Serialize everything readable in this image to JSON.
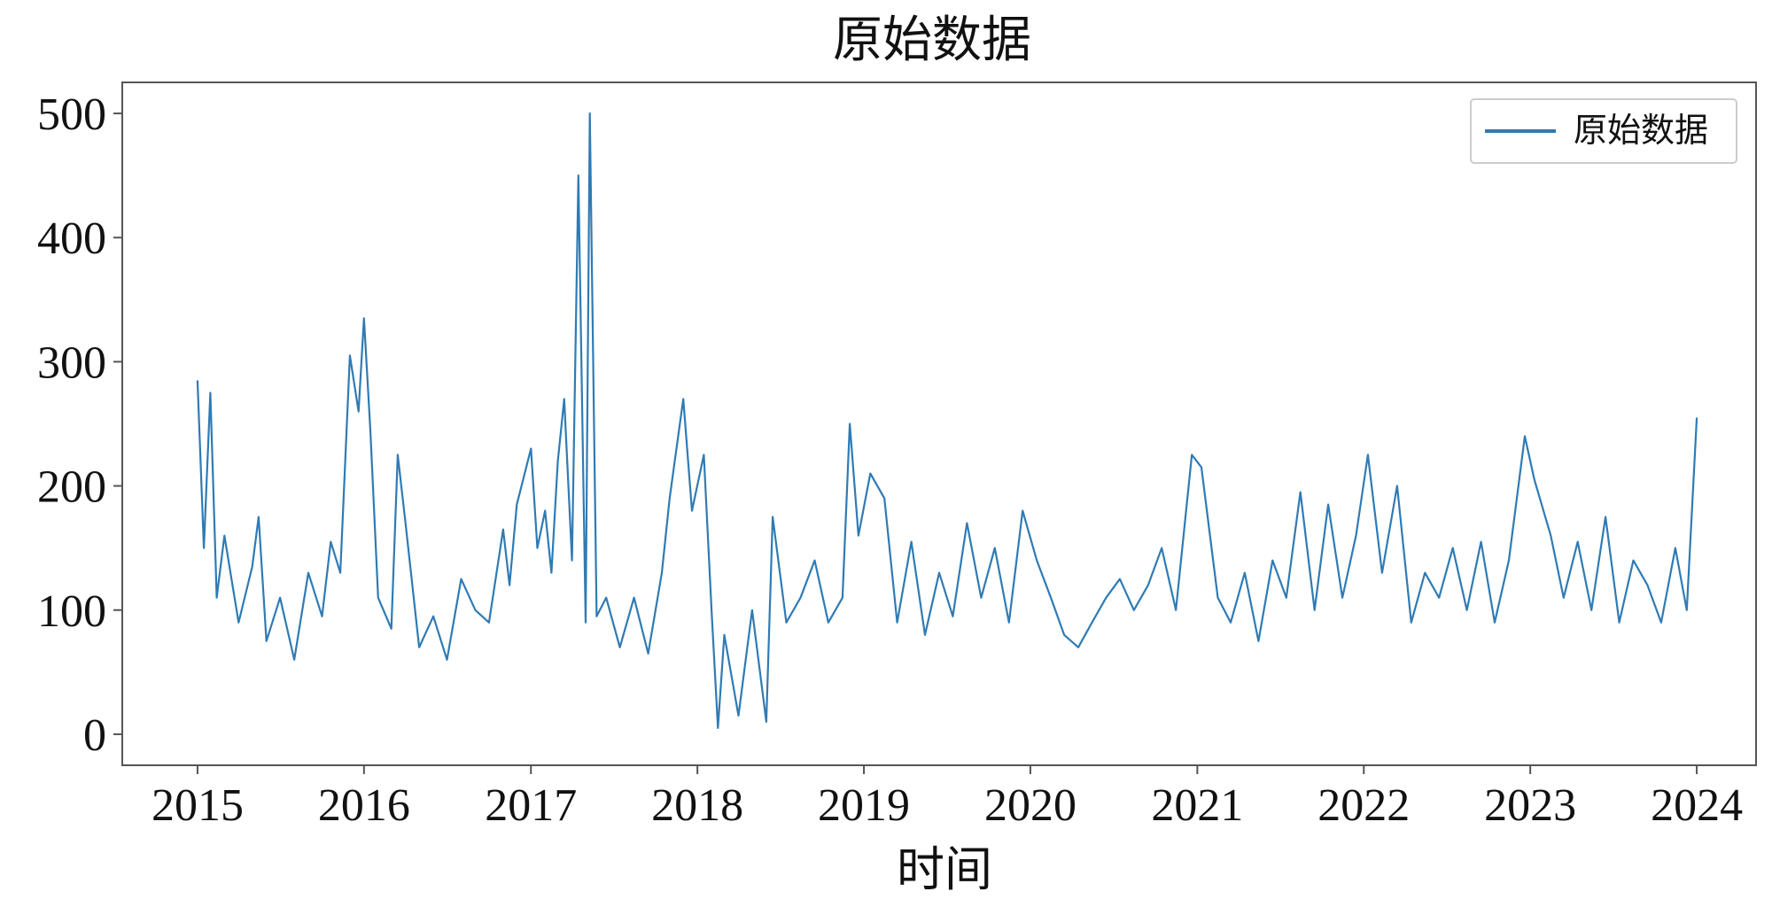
{
  "chart_data": {
    "type": "line",
    "title": "原始数据",
    "xlabel": "时间",
    "ylabel": "",
    "x_range": [
      "2015-01-01",
      "2024-01-01"
    ],
    "xlim": [
      "2014-07-20",
      "2024-05-10"
    ],
    "ylim": [
      -25,
      525
    ],
    "x_ticks": [
      "2015",
      "2016",
      "2017",
      "2018",
      "2019",
      "2020",
      "2021",
      "2022",
      "2023",
      "2024"
    ],
    "y_ticks": [
      0,
      100,
      200,
      300,
      400,
      500
    ],
    "grid": false,
    "legend": {
      "position": "top-right"
    },
    "colors": {
      "series": "#2f7bb4",
      "axes": "#555555",
      "text": "#111111"
    },
    "series": [
      {
        "name": "原始数据",
        "points": [
          [
            "2015-01-01",
            285
          ],
          [
            "2015-01-15",
            150
          ],
          [
            "2015-01-29",
            275
          ],
          [
            "2015-02-12",
            110
          ],
          [
            "2015-03-01",
            160
          ],
          [
            "2015-04-01",
            90
          ],
          [
            "2015-05-01",
            135
          ],
          [
            "2015-05-15",
            175
          ],
          [
            "2015-06-01",
            75
          ],
          [
            "2015-07-01",
            110
          ],
          [
            "2015-08-01",
            60
          ],
          [
            "2015-09-01",
            130
          ],
          [
            "2015-10-01",
            95
          ],
          [
            "2015-10-20",
            155
          ],
          [
            "2015-11-10",
            130
          ],
          [
            "2015-12-01",
            305
          ],
          [
            "2015-12-20",
            260
          ],
          [
            "2016-01-01",
            335
          ],
          [
            "2016-01-15",
            245
          ],
          [
            "2016-02-01",
            110
          ],
          [
            "2016-03-01",
            85
          ],
          [
            "2016-03-15",
            225
          ],
          [
            "2016-04-01",
            170
          ],
          [
            "2016-05-01",
            70
          ],
          [
            "2016-06-01",
            95
          ],
          [
            "2016-07-01",
            60
          ],
          [
            "2016-08-01",
            125
          ],
          [
            "2016-09-01",
            100
          ],
          [
            "2016-10-01",
            90
          ],
          [
            "2016-11-01",
            165
          ],
          [
            "2016-11-15",
            120
          ],
          [
            "2016-12-01",
            185
          ],
          [
            "2017-01-01",
            230
          ],
          [
            "2017-01-15",
            150
          ],
          [
            "2017-02-01",
            180
          ],
          [
            "2017-02-15",
            130
          ],
          [
            "2017-03-01",
            220
          ],
          [
            "2017-03-15",
            270
          ],
          [
            "2017-04-01",
            140
          ],
          [
            "2017-04-15",
            450
          ],
          [
            "2017-05-01",
            90
          ],
          [
            "2017-05-10",
            500
          ],
          [
            "2017-05-25",
            95
          ],
          [
            "2017-06-15",
            110
          ],
          [
            "2017-07-15",
            70
          ],
          [
            "2017-08-15",
            110
          ],
          [
            "2017-09-15",
            65
          ],
          [
            "2017-10-15",
            130
          ],
          [
            "2017-11-01",
            190
          ],
          [
            "2017-12-01",
            270
          ],
          [
            "2017-12-20",
            180
          ],
          [
            "2018-01-15",
            225
          ],
          [
            "2018-02-01",
            100
          ],
          [
            "2018-02-15",
            5
          ],
          [
            "2018-03-01",
            80
          ],
          [
            "2018-04-01",
            15
          ],
          [
            "2018-05-01",
            100
          ],
          [
            "2018-06-01",
            10
          ],
          [
            "2018-06-15",
            175
          ],
          [
            "2018-07-15",
            90
          ],
          [
            "2018-08-15",
            110
          ],
          [
            "2018-09-15",
            140
          ],
          [
            "2018-10-15",
            90
          ],
          [
            "2018-11-15",
            110
          ],
          [
            "2018-12-01",
            250
          ],
          [
            "2018-12-20",
            160
          ],
          [
            "2019-01-15",
            210
          ],
          [
            "2019-02-15",
            190
          ],
          [
            "2019-03-15",
            90
          ],
          [
            "2019-04-15",
            155
          ],
          [
            "2019-05-15",
            80
          ],
          [
            "2019-06-15",
            130
          ],
          [
            "2019-07-15",
            95
          ],
          [
            "2019-08-15",
            170
          ],
          [
            "2019-09-15",
            110
          ],
          [
            "2019-10-15",
            150
          ],
          [
            "2019-11-15",
            90
          ],
          [
            "2019-12-15",
            180
          ],
          [
            "2020-01-15",
            140
          ],
          [
            "2020-02-15",
            110
          ],
          [
            "2020-03-15",
            80
          ],
          [
            "2020-04-15",
            70
          ],
          [
            "2020-05-15",
            90
          ],
          [
            "2020-06-15",
            110
          ],
          [
            "2020-07-15",
            125
          ],
          [
            "2020-08-15",
            100
          ],
          [
            "2020-09-15",
            120
          ],
          [
            "2020-10-15",
            150
          ],
          [
            "2020-11-15",
            100
          ],
          [
            "2020-12-20",
            225
          ],
          [
            "2021-01-10",
            215
          ],
          [
            "2021-02-15",
            110
          ],
          [
            "2021-03-15",
            90
          ],
          [
            "2021-04-15",
            130
          ],
          [
            "2021-05-15",
            75
          ],
          [
            "2021-06-15",
            140
          ],
          [
            "2021-07-15",
            110
          ],
          [
            "2021-08-15",
            195
          ],
          [
            "2021-09-15",
            100
          ],
          [
            "2021-10-15",
            185
          ],
          [
            "2021-11-15",
            110
          ],
          [
            "2021-12-15",
            160
          ],
          [
            "2022-01-10",
            225
          ],
          [
            "2022-02-10",
            130
          ],
          [
            "2022-03-15",
            200
          ],
          [
            "2022-04-15",
            90
          ],
          [
            "2022-05-15",
            130
          ],
          [
            "2022-06-15",
            110
          ],
          [
            "2022-07-15",
            150
          ],
          [
            "2022-08-15",
            100
          ],
          [
            "2022-09-15",
            155
          ],
          [
            "2022-10-15",
            90
          ],
          [
            "2022-11-15",
            140
          ],
          [
            "2022-12-20",
            240
          ],
          [
            "2023-01-10",
            205
          ],
          [
            "2023-02-15",
            160
          ],
          [
            "2023-03-15",
            110
          ],
          [
            "2023-04-15",
            155
          ],
          [
            "2023-05-15",
            100
          ],
          [
            "2023-06-15",
            175
          ],
          [
            "2023-07-15",
            90
          ],
          [
            "2023-08-15",
            140
          ],
          [
            "2023-09-15",
            120
          ],
          [
            "2023-10-15",
            90
          ],
          [
            "2023-11-15",
            150
          ],
          [
            "2023-12-10",
            100
          ],
          [
            "2024-01-01",
            255
          ]
        ]
      }
    ]
  }
}
